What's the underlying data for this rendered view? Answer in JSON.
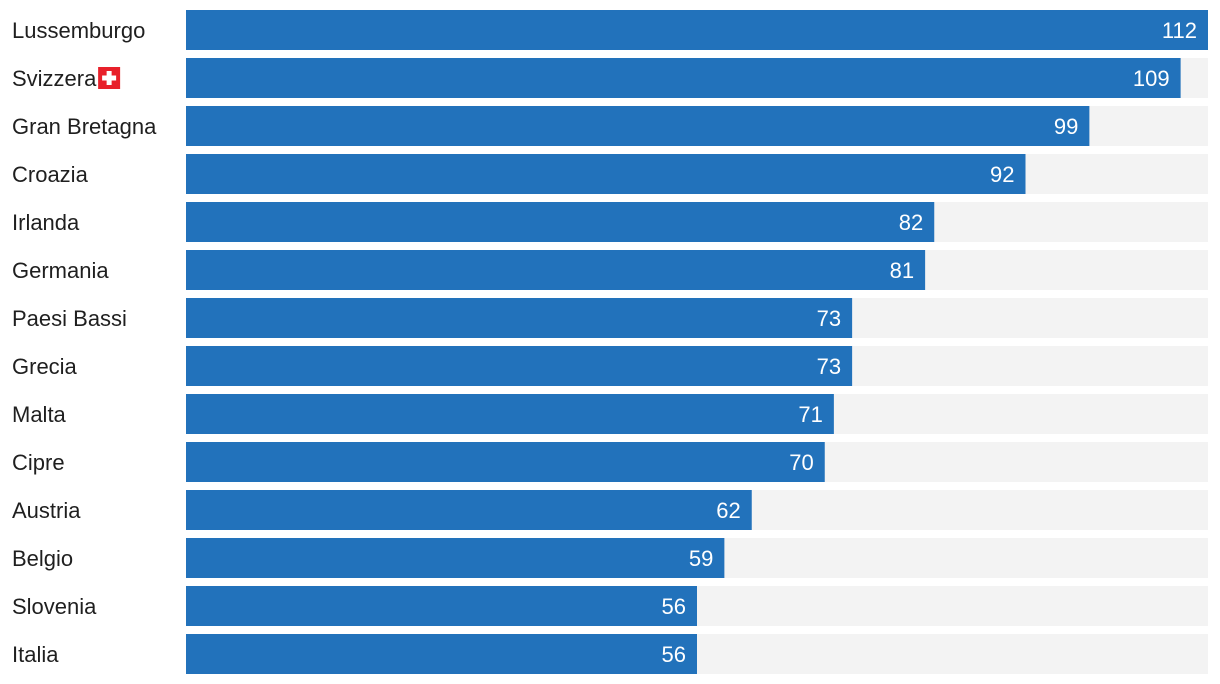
{
  "chart_data": {
    "type": "bar",
    "orientation": "horizontal",
    "categories": [
      "Lussemburgo",
      "Svizzera",
      "Gran Bretagna",
      "Croazia",
      "Irlanda",
      "Germania",
      "Paesi Bassi",
      "Grecia",
      "Malta",
      "Cipre",
      "Austria",
      "Belgio",
      "Slovenia",
      "Italia"
    ],
    "values": [
      112,
      109,
      99,
      92,
      82,
      81,
      73,
      73,
      71,
      70,
      62,
      59,
      56,
      56
    ],
    "xlim": [
      0,
      112
    ],
    "highlight": {
      "category": "Svizzera",
      "icon": "swiss-flag-icon"
    },
    "grid": false,
    "legend": "none",
    "colors": {
      "bar": "#2272bb",
      "track": "#f3f3f3",
      "label_text": "#1f1f1f",
      "value_text": "#ffffff",
      "flag_red": "#e8202a",
      "flag_cross": "#ffffff"
    }
  }
}
